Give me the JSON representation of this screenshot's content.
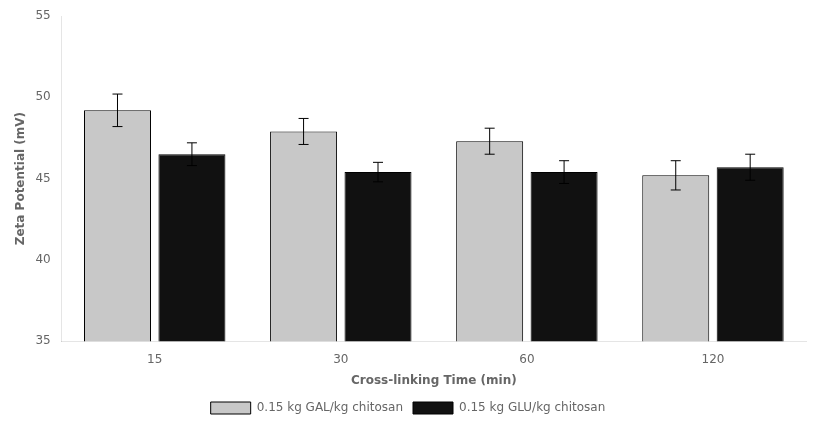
{
  "chart_data": {
    "type": "bar",
    "categories": [
      "15",
      "30",
      "60",
      "120"
    ],
    "series": [
      {
        "name": "0.15 kg GAL/kg chitosan",
        "color": "#c8c8c8",
        "values": [
          49.2,
          47.9,
          47.3,
          45.2
        ],
        "errors": [
          1.0,
          0.8,
          0.8,
          0.9
        ]
      },
      {
        "name": "0.15 kg GLU/kg chitosan",
        "color": "#111111",
        "values": [
          46.5,
          45.4,
          45.4,
          45.7
        ],
        "errors": [
          0.7,
          0.6,
          0.7,
          0.8
        ]
      }
    ],
    "xlabel": "Cross-linking Time (min)",
    "ylabel": "Zeta Potential (mV)",
    "ylim": [
      35,
      55
    ],
    "yticks": [
      35,
      40,
      45,
      50,
      55
    ],
    "grid": false,
    "legend": "bottom"
  }
}
